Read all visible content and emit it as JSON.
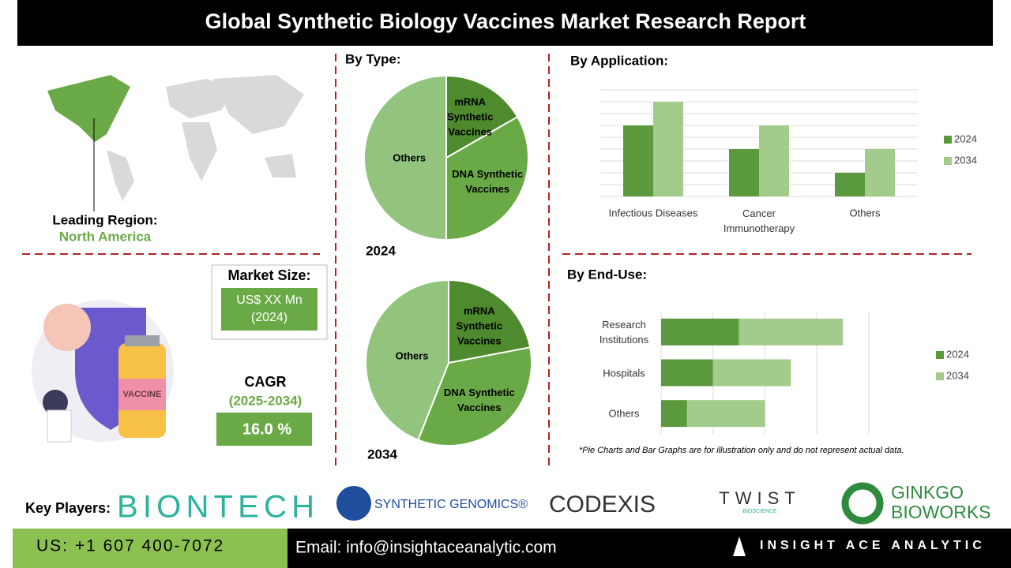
{
  "header": {
    "title": "Global Synthetic Biology Vaccines Market Research Report"
  },
  "region": {
    "label": "Leading Region:",
    "value": "North America"
  },
  "market": {
    "label": "Market Size:",
    "value": "US$ XX Mn (2024)",
    "cagr_label": "CAGR",
    "cagr_period": "(2025-2034)",
    "cagr_value": "16.0 %"
  },
  "chart_data": [
    {
      "type": "pie",
      "title": "By Type:",
      "subtitle": "2024",
      "categories": [
        "mRNA Synthetic Vaccines",
        "DNA Synthetic Vaccines",
        "Others"
      ],
      "values": [
        16.7,
        33.3,
        50
      ],
      "colors": [
        "#4e8a2e",
        "#6aaa46",
        "#93c47d"
      ]
    },
    {
      "type": "pie",
      "subtitle": "2034",
      "categories": [
        "mRNA Synthetic Vaccines",
        "DNA Synthetic Vaccines",
        "Others"
      ],
      "values": [
        22,
        34,
        44
      ],
      "colors": [
        "#4e8a2e",
        "#6aaa46",
        "#93c47d"
      ]
    },
    {
      "type": "bar",
      "title": "By Application:",
      "categories": [
        "Infectious Diseases",
        "Cancer Immunotherapy",
        "Others"
      ],
      "series": [
        {
          "name": "2024",
          "color": "#5b9a3c",
          "values": [
            6,
            4,
            2
          ]
        },
        {
          "name": "2034",
          "color": "#a3cc8c",
          "values": [
            8,
            6,
            4
          ]
        }
      ],
      "ylim": [
        0,
        9
      ],
      "grid": true
    },
    {
      "type": "hbar-stacked",
      "title": "By End-Use:",
      "categories": [
        "Research Institutions",
        "Hospitals",
        "Others"
      ],
      "series": [
        {
          "name": "2024",
          "color": "#5b9a3c",
          "values": [
            1.5,
            1,
            0.5
          ]
        },
        {
          "name": "2034",
          "color": "#a3cc8c",
          "values": [
            2,
            1.5,
            1.5
          ]
        }
      ],
      "xlim": [
        0,
        4
      ],
      "grid": true
    }
  ],
  "note": "*Pie Charts and Bar Graphs are for illustration only and do not represent actual data.",
  "key_players": {
    "label": "Key Players:",
    "names": [
      "BIONTECH",
      "SYNTHETIC GENOMICS®",
      "CODEXIS",
      "TWIST",
      "BIOSCIENCE",
      "GINKGO",
      "BIOWORKS"
    ]
  },
  "footer": {
    "phone": "US: +1 607 400-7072",
    "email": "Email: info@insightaceanalytic.com",
    "brand": "INSIGHT ACE ANALYTIC"
  }
}
